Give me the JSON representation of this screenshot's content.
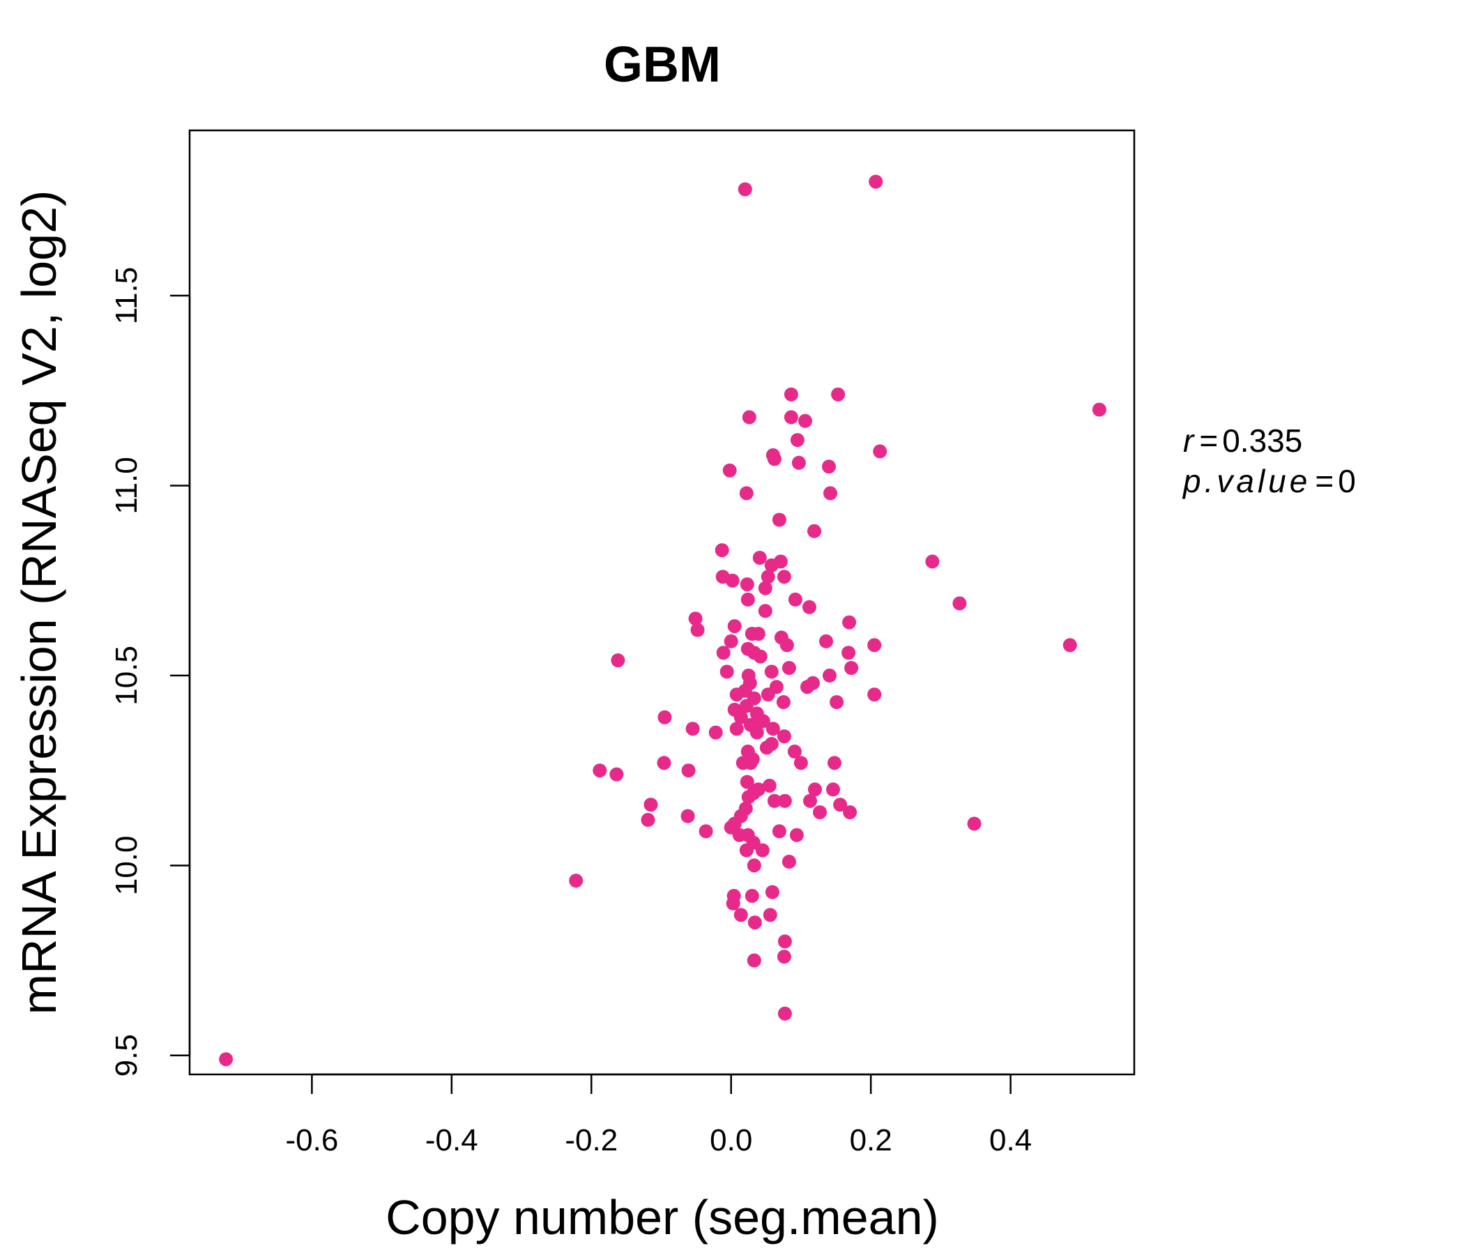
{
  "chart_data": {
    "type": "scatter",
    "title": "GBM",
    "xlabel": "Copy number (seg.mean)",
    "ylabel": "mRNA Expression (RNASeq V2, log2)",
    "xlim": [
      -0.775,
      0.577
    ],
    "ylim": [
      9.45,
      11.935
    ],
    "xticks": [
      -0.6,
      -0.4,
      -0.2,
      0.0,
      0.2,
      0.4
    ],
    "xtick_labels": [
      "-0.6",
      "-0.4",
      "-0.2",
      "0.0",
      "0.2",
      "0.4"
    ],
    "yticks": [
      9.5,
      10.0,
      10.5,
      11.0,
      11.5
    ],
    "ytick_labels": [
      "9.5",
      "10.0",
      "10.5",
      "11.0",
      "11.5"
    ],
    "grid": false,
    "color": "#E7298A",
    "stats": {
      "r_label": "r",
      "r_value": "0.335",
      "p_label": "p.value",
      "p_value": "0"
    },
    "points": [
      [
        0.02,
        11.78
      ],
      [
        0.207,
        11.8
      ],
      [
        0.086,
        11.24
      ],
      [
        0.153,
        11.24
      ],
      [
        0.527,
        11.2
      ],
      [
        0.026,
        11.18
      ],
      [
        0.086,
        11.18
      ],
      [
        0.106,
        11.17
      ],
      [
        0.095,
        11.12
      ],
      [
        0.213,
        11.09
      ],
      [
        0.06,
        11.08
      ],
      [
        0.062,
        11.07
      ],
      [
        0.097,
        11.06
      ],
      [
        0.14,
        11.05
      ],
      [
        -0.002,
        11.04
      ],
      [
        0.022,
        10.98
      ],
      [
        0.142,
        10.98
      ],
      [
        0.069,
        10.91
      ],
      [
        0.119,
        10.88
      ],
      [
        -0.013,
        10.83
      ],
      [
        0.041,
        10.81
      ],
      [
        0.071,
        10.8
      ],
      [
        0.058,
        10.79
      ],
      [
        0.288,
        10.8
      ],
      [
        -0.012,
        10.76
      ],
      [
        0.002,
        10.75
      ],
      [
        0.053,
        10.76
      ],
      [
        0.076,
        10.76
      ],
      [
        0.023,
        10.74
      ],
      [
        0.049,
        10.73
      ],
      [
        0.092,
        10.7
      ],
      [
        0.024,
        10.7
      ],
      [
        0.112,
        10.68
      ],
      [
        0.327,
        10.69
      ],
      [
        0.049,
        10.67
      ],
      [
        -0.051,
        10.65
      ],
      [
        0.005,
        10.63
      ],
      [
        0.169,
        10.64
      ],
      [
        -0.048,
        10.62
      ],
      [
        0.03,
        10.61
      ],
      [
        0.039,
        10.61
      ],
      [
        0.072,
        10.6
      ],
      [
        0.0,
        10.59
      ],
      [
        0.136,
        10.59
      ],
      [
        0.08,
        10.58
      ],
      [
        0.205,
        10.58
      ],
      [
        0.485,
        10.58
      ],
      [
        0.024,
        10.57
      ],
      [
        0.033,
        10.56
      ],
      [
        0.042,
        10.55
      ],
      [
        -0.011,
        10.56
      ],
      [
        0.168,
        10.56
      ],
      [
        -0.162,
        10.54
      ],
      [
        0.083,
        10.52
      ],
      [
        0.172,
        10.52
      ],
      [
        0.058,
        10.51
      ],
      [
        0.025,
        10.5
      ],
      [
        -0.006,
        10.51
      ],
      [
        0.141,
        10.5
      ],
      [
        0.027,
        10.48
      ],
      [
        0.117,
        10.48
      ],
      [
        0.109,
        10.47
      ],
      [
        0.065,
        10.47
      ],
      [
        0.02,
        10.46
      ],
      [
        0.053,
        10.45
      ],
      [
        0.205,
        10.45
      ],
      [
        0.008,
        10.45
      ],
      [
        0.033,
        10.44
      ],
      [
        0.075,
        10.43
      ],
      [
        0.151,
        10.43
      ],
      [
        0.022,
        10.42
      ],
      [
        0.005,
        10.41
      ],
      [
        0.037,
        10.4
      ],
      [
        -0.095,
        10.39
      ],
      [
        0.014,
        10.39
      ],
      [
        0.046,
        10.38
      ],
      [
        0.028,
        10.37
      ],
      [
        0.06,
        10.36
      ],
      [
        -0.055,
        10.36
      ],
      [
        0.008,
        10.36
      ],
      [
        0.037,
        10.35
      ],
      [
        -0.022,
        10.35
      ],
      [
        0.076,
        10.34
      ],
      [
        0.058,
        10.32
      ],
      [
        0.051,
        10.31
      ],
      [
        0.024,
        10.3
      ],
      [
        0.091,
        10.3
      ],
      [
        0.031,
        10.28
      ],
      [
        0.017,
        10.27
      ],
      [
        -0.096,
        10.27
      ],
      [
        0.148,
        10.27
      ],
      [
        0.028,
        10.27
      ],
      [
        0.1,
        10.27
      ],
      [
        -0.061,
        10.25
      ],
      [
        -0.188,
        10.25
      ],
      [
        -0.164,
        10.24
      ],
      [
        0.023,
        10.22
      ],
      [
        0.055,
        10.21
      ],
      [
        0.039,
        10.2
      ],
      [
        0.12,
        10.2
      ],
      [
        0.146,
        10.2
      ],
      [
        0.032,
        10.19
      ],
      [
        0.025,
        10.18
      ],
      [
        0.062,
        10.17
      ],
      [
        0.113,
        10.17
      ],
      [
        -0.115,
        10.16
      ],
      [
        0.077,
        10.17
      ],
      [
        0.156,
        10.16
      ],
      [
        0.021,
        10.15
      ],
      [
        0.127,
        10.14
      ],
      [
        0.17,
        10.14
      ],
      [
        0.014,
        10.13
      ],
      [
        -0.062,
        10.13
      ],
      [
        -0.119,
        10.12
      ],
      [
        0.005,
        10.11
      ],
      [
        0.348,
        10.11
      ],
      [
        0.0,
        10.1
      ],
      [
        0.069,
        10.09
      ],
      [
        -0.036,
        10.09
      ],
      [
        0.024,
        10.08
      ],
      [
        0.012,
        10.08
      ],
      [
        0.094,
        10.08
      ],
      [
        0.032,
        10.06
      ],
      [
        0.045,
        10.04
      ],
      [
        0.022,
        10.04
      ],
      [
        0.083,
        10.01
      ],
      [
        0.033,
        10.0
      ],
      [
        -0.222,
        9.96
      ],
      [
        0.059,
        9.93
      ],
      [
        0.004,
        9.92
      ],
      [
        0.03,
        9.92
      ],
      [
        0.003,
        9.9
      ],
      [
        0.014,
        9.87
      ],
      [
        0.056,
        9.87
      ],
      [
        0.034,
        9.85
      ],
      [
        0.077,
        9.8
      ],
      [
        0.076,
        9.76
      ],
      [
        0.033,
        9.75
      ],
      [
        0.077,
        9.61
      ],
      [
        -0.723,
        9.49
      ]
    ]
  }
}
